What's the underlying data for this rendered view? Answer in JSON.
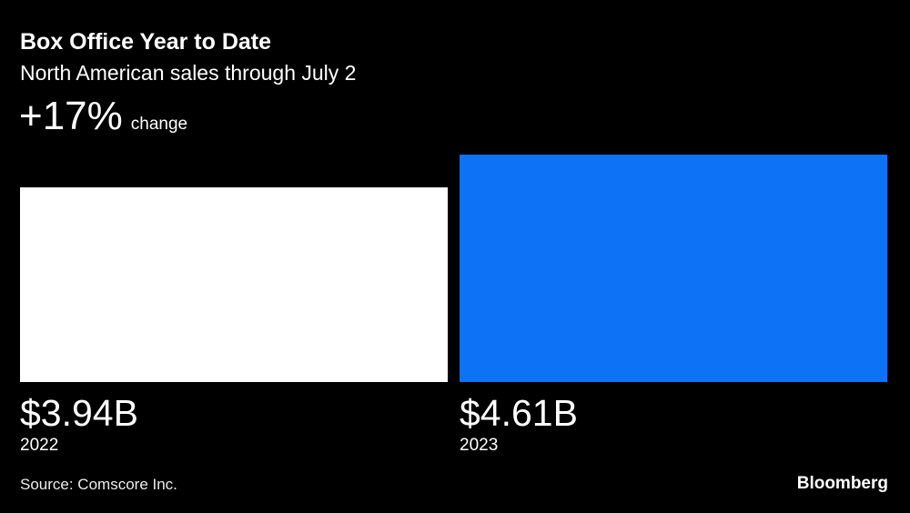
{
  "chart_data": {
    "type": "bar",
    "title": "Box Office Year to Date",
    "subtitle": "North American sales through July 2",
    "annotation": {
      "value": "+17%",
      "label": "change"
    },
    "categories": [
      "2022",
      "2023"
    ],
    "values": [
      3.94,
      4.61
    ],
    "value_labels": [
      "$3.94B",
      "$4.61B"
    ],
    "bar_colors": [
      "#ffffff",
      "#0d72f5"
    ],
    "background_color": "#000000",
    "text_color": "#ffffff",
    "source": "Source: Comscore Inc.",
    "brand": "Bloomberg",
    "xlabel": "",
    "ylabel": "",
    "legend": "none",
    "grid": false
  }
}
